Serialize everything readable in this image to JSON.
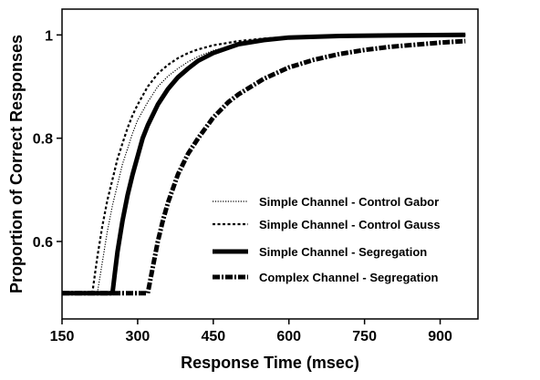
{
  "chart_data": {
    "type": "line",
    "xlabel": "Response Time (msec)",
    "ylabel": "Proportion of Correct Responses",
    "xlim": [
      150,
      975
    ],
    "ylim": [
      0.45,
      1.05
    ],
    "x_ticks": [
      150,
      300,
      450,
      600,
      750,
      900
    ],
    "y_ticks": [
      0.6,
      0.8,
      1
    ],
    "x_tick_labels": [
      "150",
      "300",
      "450",
      "600",
      "750",
      "900"
    ],
    "y_tick_labels": [
      "0.6",
      "0.8",
      "1"
    ],
    "grid": false,
    "legend_position": "right",
    "series": [
      {
        "name": "Simple Channel - Control Gabor",
        "style": "dotted-thin",
        "x": [
          150,
          220,
          230,
          240,
          250,
          260,
          270,
          280,
          290,
          300,
          320,
          340,
          360,
          380,
          400,
          420,
          450,
          500,
          550,
          600,
          700,
          800,
          950
        ],
        "y": [
          0.5,
          0.5,
          0.56,
          0.62,
          0.67,
          0.71,
          0.75,
          0.78,
          0.81,
          0.835,
          0.87,
          0.9,
          0.92,
          0.935,
          0.948,
          0.958,
          0.97,
          0.982,
          0.99,
          0.995,
          0.998,
          0.999,
          1.0
        ]
      },
      {
        "name": "Simple Channel - Control Gauss",
        "style": "dashed-short",
        "x": [
          150,
          210,
          220,
          230,
          240,
          250,
          260,
          270,
          280,
          290,
          300,
          320,
          340,
          360,
          380,
          400,
          420,
          450,
          500,
          550,
          600,
          700,
          800,
          950
        ],
        "y": [
          0.5,
          0.5,
          0.57,
          0.63,
          0.68,
          0.72,
          0.76,
          0.79,
          0.82,
          0.845,
          0.865,
          0.9,
          0.925,
          0.942,
          0.955,
          0.965,
          0.972,
          0.98,
          0.988,
          0.993,
          0.996,
          0.998,
          0.999,
          1.0
        ]
      },
      {
        "name": "Simple Channel - Segregation",
        "style": "solid-thick",
        "x": [
          150,
          250,
          255,
          260,
          270,
          280,
          290,
          300,
          310,
          320,
          340,
          360,
          380,
          400,
          420,
          450,
          500,
          550,
          600,
          700,
          800,
          950
        ],
        "y": [
          0.5,
          0.5,
          0.54,
          0.58,
          0.64,
          0.69,
          0.73,
          0.765,
          0.8,
          0.825,
          0.865,
          0.895,
          0.918,
          0.935,
          0.95,
          0.965,
          0.982,
          0.99,
          0.995,
          0.998,
          0.999,
          1.0
        ]
      },
      {
        "name": "Complex Channel - Segregation",
        "style": "dashdot-thick",
        "x": [
          150,
          320,
          330,
          340,
          350,
          360,
          380,
          400,
          420,
          450,
          480,
          500,
          550,
          600,
          650,
          700,
          750,
          800,
          850,
          900,
          950
        ],
        "y": [
          0.5,
          0.5,
          0.55,
          0.6,
          0.64,
          0.675,
          0.73,
          0.77,
          0.8,
          0.84,
          0.87,
          0.885,
          0.915,
          0.937,
          0.952,
          0.963,
          0.971,
          0.977,
          0.981,
          0.985,
          0.988
        ]
      }
    ]
  }
}
